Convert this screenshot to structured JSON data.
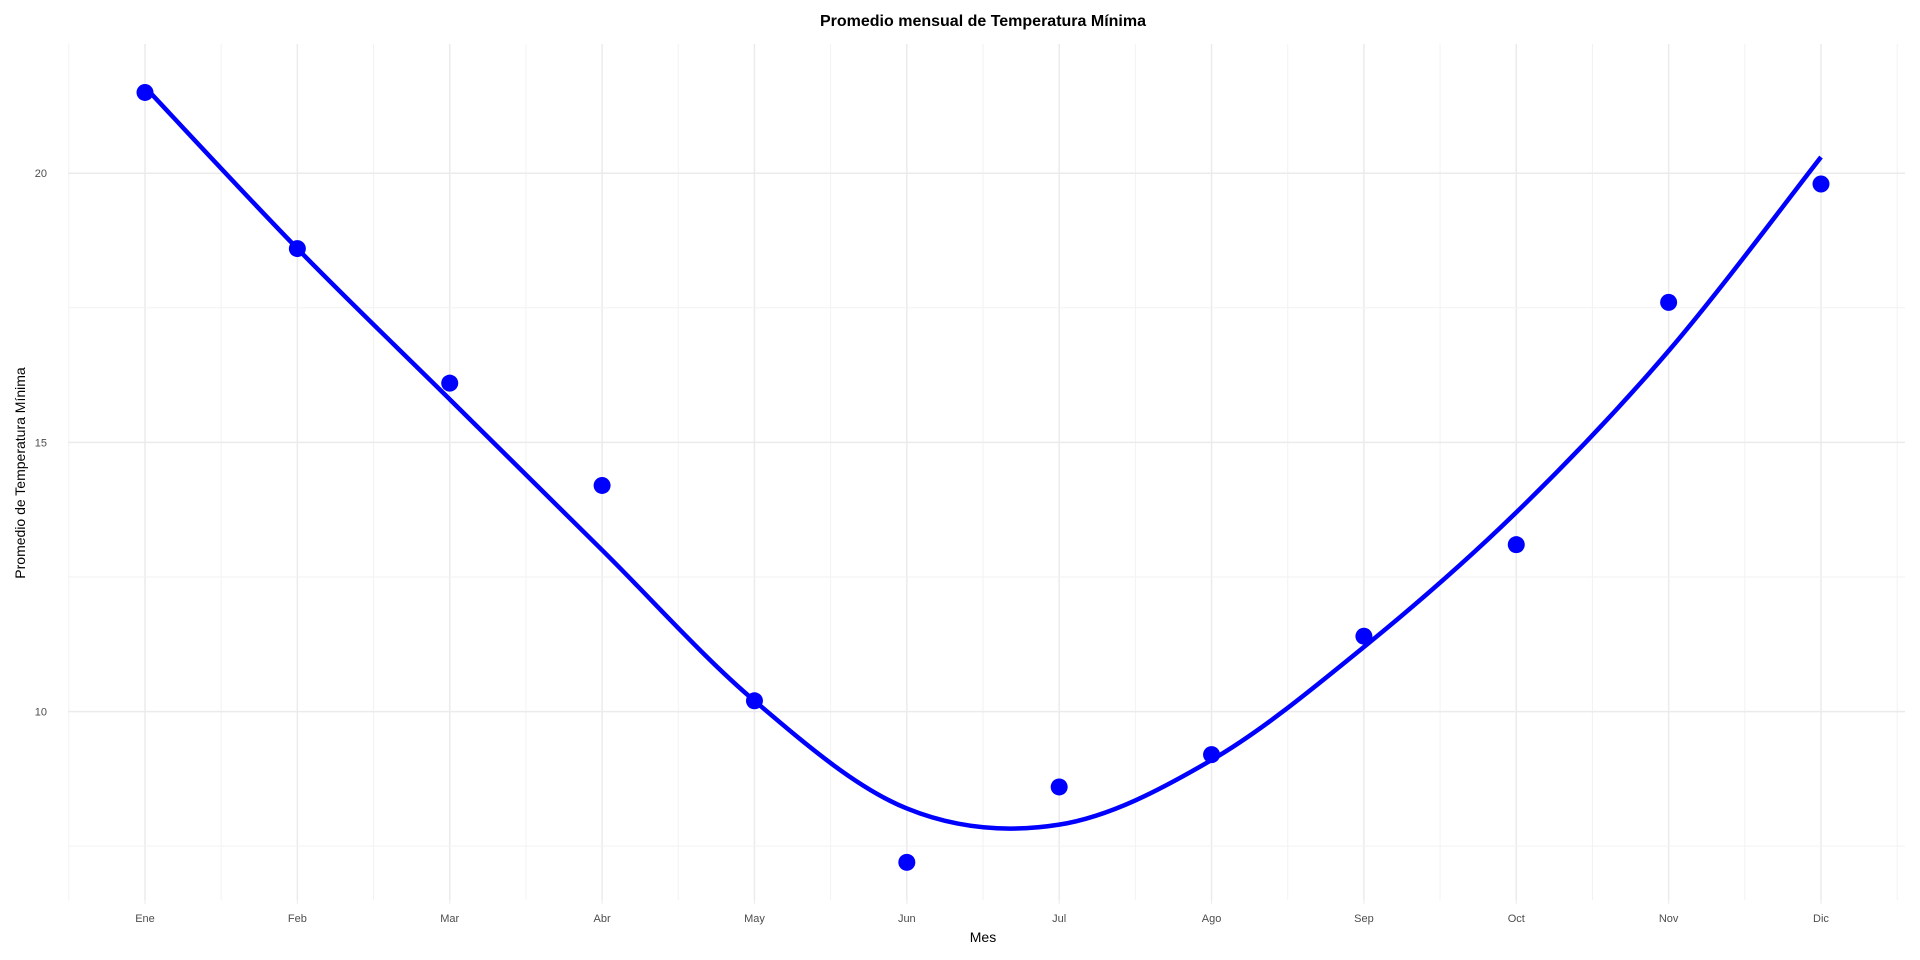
{
  "chart_data": {
    "type": "scatter",
    "title": "Promedio mensual de Temperatura Mínima",
    "xlabel": "Mes",
    "ylabel": "Promedio de Temperatura Mínima",
    "categories": [
      "Ene",
      "Feb",
      "Mar",
      "Abr",
      "May",
      "Jun",
      "Jul",
      "Ago",
      "Sep",
      "Oct",
      "Nov",
      "Dic"
    ],
    "series": [
      {
        "values": [
          21.5,
          18.6,
          16.1,
          14.2,
          10.2,
          7.2,
          8.6,
          9.2,
          11.4,
          13.1,
          17.6,
          19.8
        ],
        "color": "#0000ff"
      }
    ],
    "smooth_trend": [
      21.6,
      18.6,
      15.8,
      13.0,
      10.2,
      8.2,
      7.9,
      9.1,
      11.2,
      13.7,
      16.7,
      20.3
    ],
    "ylim": [
      6.5,
      22.4
    ],
    "yticks": [
      10,
      15,
      20
    ],
    "grid": true,
    "legend": "none"
  }
}
